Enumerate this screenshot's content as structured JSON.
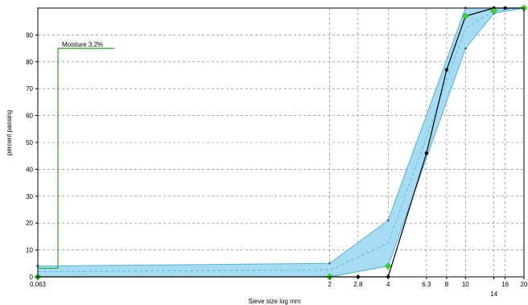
{
  "chart_data": {
    "type": "line",
    "title": "",
    "xlabel": "Sieve size log mm",
    "ylabel": "percent passing",
    "x_scale": "log",
    "xlim": [
      0.063,
      20
    ],
    "ylim": [
      0,
      100
    ],
    "grid": true,
    "x_ticks": [
      {
        "value": 0.063,
        "label": "0.063",
        "row": 1
      },
      {
        "value": 2,
        "label": "2",
        "row": 1
      },
      {
        "value": 2.8,
        "label": "2.8",
        "row": 1
      },
      {
        "value": 4,
        "label": "4",
        "row": 1
      },
      {
        "value": 6.3,
        "label": "6.3",
        "row": 1
      },
      {
        "value": 8,
        "label": "8",
        "row": 1
      },
      {
        "value": 10,
        "label": "10",
        "row": 1
      },
      {
        "value": 14,
        "label": "14",
        "row": 2
      },
      {
        "value": 16,
        "label": "16",
        "row": 1
      },
      {
        "value": 20,
        "label": "20",
        "row": 1
      }
    ],
    "y_ticks": [
      0,
      10,
      20,
      30,
      40,
      50,
      60,
      70,
      80,
      90
    ],
    "envelope": {
      "upper": [
        {
          "x": 0.063,
          "y": 4
        },
        {
          "x": 2,
          "y": 5
        },
        {
          "x": 4,
          "y": 21
        },
        {
          "x": 10,
          "y": 100
        },
        {
          "x": 14,
          "y": 100
        },
        {
          "x": 20,
          "y": 100
        }
      ],
      "lower": [
        {
          "x": 0.063,
          "y": 0
        },
        {
          "x": 2,
          "y": 0
        },
        {
          "x": 4,
          "y": 4
        },
        {
          "x": 10,
          "y": 85
        },
        {
          "x": 14,
          "y": 98
        },
        {
          "x": 20,
          "y": 100
        }
      ],
      "mid": [
        {
          "x": 0.063,
          "y": 2
        },
        {
          "x": 2,
          "y": 2.5
        },
        {
          "x": 4,
          "y": 12.5
        },
        {
          "x": 10,
          "y": 92.5
        },
        {
          "x": 14,
          "y": 99
        },
        {
          "x": 20,
          "y": 100
        }
      ]
    },
    "grading_curve": [
      {
        "x": 0.063,
        "y": 0
      },
      {
        "x": 2,
        "y": 0
      },
      {
        "x": 2.8,
        "y": 0
      },
      {
        "x": 4,
        "y": 0
      },
      {
        "x": 6.3,
        "y": 46
      },
      {
        "x": 8,
        "y": 77
      },
      {
        "x": 10,
        "y": 97
      },
      {
        "x": 14,
        "y": 100
      },
      {
        "x": 16,
        "y": 100
      },
      {
        "x": 20,
        "y": 100
      }
    ],
    "control_points": [
      {
        "x": 0.063,
        "y": 0
      },
      {
        "x": 2,
        "y": 0
      },
      {
        "x": 4,
        "y": 4
      },
      {
        "x": 10,
        "y": 97
      },
      {
        "x": 14,
        "y": 99
      },
      {
        "x": 20,
        "y": 100
      }
    ],
    "moisture": {
      "label": "Moisture 3.2%",
      "value": 3.2,
      "top": 85,
      "x": 0.063
    },
    "colors": {
      "fill": "#a6dcf2",
      "envelope_line": "#4fb3dc",
      "curve": "#000000",
      "points": "#33dd22",
      "moisture": "#22aa22",
      "grid": "#777777"
    }
  }
}
